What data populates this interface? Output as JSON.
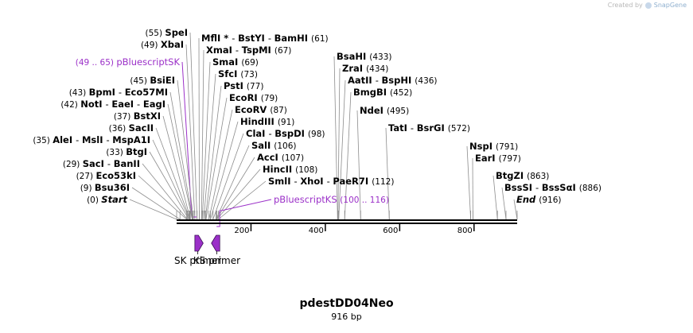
{
  "credit": {
    "prefix": "Created by",
    "brand": "SnapGene",
    "icon": "snapgene-logo-icon"
  },
  "map": {
    "name": "pdestDD04Neo",
    "length_label": "916 bp",
    "length": 916,
    "colors": {
      "feature": "#9b30c8",
      "backbone": "#000000",
      "leader": "#8c8c8c",
      "tick": "#000000"
    },
    "ticks": [
      {
        "pos": 200,
        "label": "200"
      },
      {
        "pos": 400,
        "label": "400"
      },
      {
        "pos": 600,
        "label": "600"
      },
      {
        "pos": 800,
        "label": "800"
      }
    ],
    "features": [
      {
        "id": "sk-primer",
        "label": "SK primer",
        "start": 49,
        "end": 65,
        "direction": "forward"
      },
      {
        "id": "ks-primer",
        "label": "KS primer",
        "start": 100,
        "end": 116,
        "direction": "reverse"
      }
    ],
    "site_labels": [
      {
        "id": "spei",
        "parts": [
          "(55)",
          "SpeI"
        ],
        "pos": 55
      },
      {
        "id": "xbai",
        "parts": [
          "(49)",
          "XbaI"
        ],
        "pos": 49
      },
      {
        "id": "pbluescriptsk",
        "parts": [
          "(49 .. 65)",
          "pBluescriptSK"
        ],
        "pos": 49,
        "type": "feature"
      },
      {
        "id": "bsiei",
        "parts": [
          "(45)",
          "BsiEI"
        ],
        "pos": 45
      },
      {
        "id": "bpmi",
        "parts": [
          "(43)",
          "BpmI",
          "-",
          "Eco57MI"
        ],
        "pos": 43
      },
      {
        "id": "noti",
        "parts": [
          "(42)",
          "NotI",
          "-",
          "EaeI",
          "-",
          "EagI"
        ],
        "pos": 42
      },
      {
        "id": "bstxi",
        "parts": [
          "(37)",
          "BstXI"
        ],
        "pos": 37
      },
      {
        "id": "sacii",
        "parts": [
          "(36)",
          "SacII"
        ],
        "pos": 36
      },
      {
        "id": "alei",
        "parts": [
          "(35)",
          "AleI",
          "-",
          "MslI",
          "-",
          "MspA1I"
        ],
        "pos": 35
      },
      {
        "id": "btgi",
        "parts": [
          "(33)",
          "BtgI"
        ],
        "pos": 33
      },
      {
        "id": "saci",
        "parts": [
          "(29)",
          "SacI",
          "-",
          "BanII"
        ],
        "pos": 29
      },
      {
        "id": "eco53ki",
        "parts": [
          "(27)",
          "Eco53kI"
        ],
        "pos": 27
      },
      {
        "id": "bsu36i",
        "parts": [
          "(9)",
          "Bsu36I"
        ],
        "pos": 9
      },
      {
        "id": "start",
        "parts": [
          "(0)",
          "Start"
        ],
        "pos": 0,
        "type": "marker"
      },
      {
        "id": "mfli",
        "parts": [
          "MflI *",
          "-",
          "BstYI",
          "-",
          "BamHI",
          "(61)"
        ],
        "pos": 61
      },
      {
        "id": "xmai",
        "parts": [
          "XmaI",
          "-",
          "TspMI",
          "(67)"
        ],
        "pos": 67
      },
      {
        "id": "smai",
        "parts": [
          "SmaI",
          "(69)"
        ],
        "pos": 69
      },
      {
        "id": "sfci",
        "parts": [
          "SfcI",
          "(73)"
        ],
        "pos": 73
      },
      {
        "id": "psti",
        "parts": [
          "PstI",
          "(77)"
        ],
        "pos": 77
      },
      {
        "id": "ecori",
        "parts": [
          "EcoRI",
          "(79)"
        ],
        "pos": 79
      },
      {
        "id": "ecorv",
        "parts": [
          "EcoRV",
          "(87)"
        ],
        "pos": 87
      },
      {
        "id": "hindiii",
        "parts": [
          "HindIII",
          "(91)"
        ],
        "pos": 91
      },
      {
        "id": "clai",
        "parts": [
          "ClaI",
          "-",
          "BspDI",
          "(98)"
        ],
        "pos": 98
      },
      {
        "id": "sali",
        "parts": [
          "SalI",
          "(106)"
        ],
        "pos": 106
      },
      {
        "id": "acci",
        "parts": [
          "AccI",
          "(107)"
        ],
        "pos": 107
      },
      {
        "id": "hincii",
        "parts": [
          "HincII",
          "(108)"
        ],
        "pos": 108
      },
      {
        "id": "smli",
        "parts": [
          "SmlI",
          "-",
          "XhoI",
          "-",
          "PaeR7I",
          "(112)"
        ],
        "pos": 112
      },
      {
        "id": "pbluescriptks",
        "parts": [
          "pBluescriptKS",
          "(100 .. 116)"
        ],
        "pos": 116,
        "type": "feature"
      },
      {
        "id": "bsahi",
        "parts": [
          "BsaHI",
          "(433)"
        ],
        "pos": 433
      },
      {
        "id": "zrai",
        "parts": [
          "ZraI",
          "(434)"
        ],
        "pos": 434
      },
      {
        "id": "aatii",
        "parts": [
          "AatII",
          "-",
          "BspHI",
          "(436)"
        ],
        "pos": 436
      },
      {
        "id": "bmgbi",
        "parts": [
          "BmgBI",
          "(452)"
        ],
        "pos": 452
      },
      {
        "id": "ndei",
        "parts": [
          "NdeI",
          "(495)"
        ],
        "pos": 495
      },
      {
        "id": "tati",
        "parts": [
          "TatI",
          "-",
          "BsrGI",
          "(572)"
        ],
        "pos": 572
      },
      {
        "id": "nspi",
        "parts": [
          "NspI",
          "(791)"
        ],
        "pos": 791
      },
      {
        "id": "eari",
        "parts": [
          "EarI",
          "(797)"
        ],
        "pos": 797
      },
      {
        "id": "btgzi",
        "parts": [
          "BtgZI",
          "(863)"
        ],
        "pos": 863
      },
      {
        "id": "bsssi",
        "parts": [
          "BssSI",
          "-",
          "BssSαI",
          "(886)"
        ],
        "pos": 886
      },
      {
        "id": "end",
        "parts": [
          "End",
          "(916)"
        ],
        "pos": 916,
        "type": "marker"
      }
    ]
  }
}
